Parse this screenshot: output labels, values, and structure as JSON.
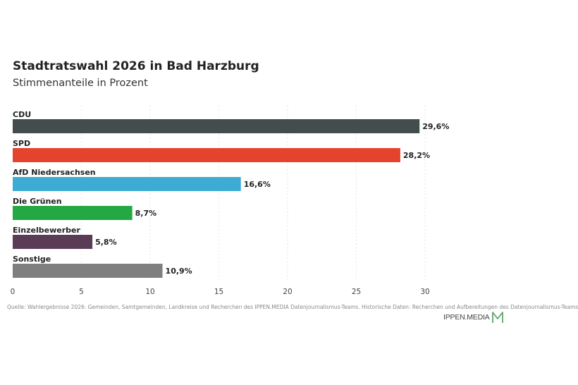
{
  "header": {
    "title": "Stadtratswahl 2026 in Bad Harzburg",
    "subtitle": "Stimmenanteile in Prozent"
  },
  "chart_data": {
    "type": "bar",
    "orientation": "horizontal",
    "categories": [
      "CDU",
      "SPD",
      "AfD Niedersachsen",
      "Die Grünen",
      "Einzelbewerber",
      "Sonstige"
    ],
    "values": [
      29.6,
      28.2,
      16.6,
      8.7,
      5.8,
      10.9
    ],
    "value_labels": [
      "29,6%",
      "28,2%",
      "16,6%",
      "8,7%",
      "5,8%",
      "10,9%"
    ],
    "colors": [
      "#434d4e",
      "#e4432d",
      "#3eabd5",
      "#23a843",
      "#5b3c56",
      "#7f7f7f"
    ],
    "xticks": [
      "0",
      "5",
      "10",
      "15",
      "20",
      "25",
      "30"
    ],
    "xlim": [
      0,
      31
    ],
    "grid": true,
    "title": "Stadtratswahl 2026 in Bad Harzburg",
    "subtitle": "Stimmenanteile in Prozent"
  },
  "footer": {
    "source": "Quelle: Wahlergebnisse 2026: Gemeinden, Samtgemeinden, Landkreise und Recherchen des IPPEN.MEDIA Datenjournalismus-Teams. Historische Daten: Recherchen und Aufbereitungen des Datenjournalismus-Teams",
    "logo_text": "IPPEN.MEDIA",
    "logo_color": "#5fa76b"
  }
}
